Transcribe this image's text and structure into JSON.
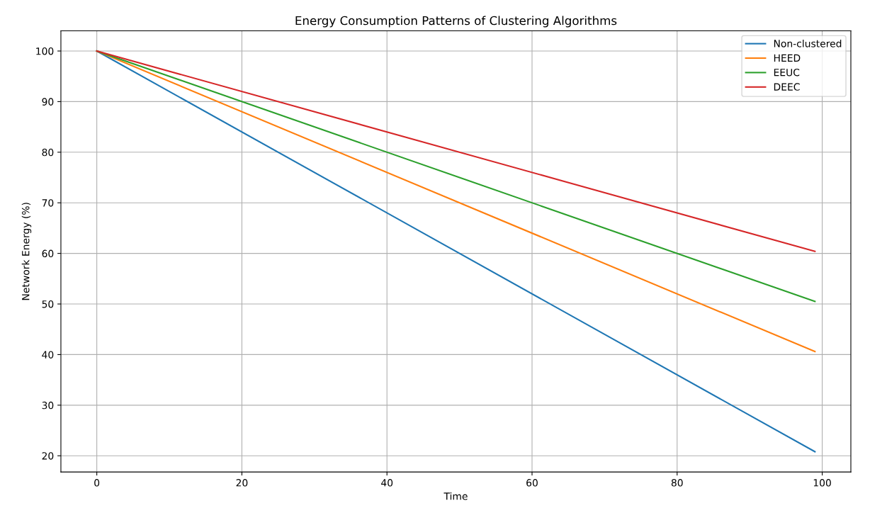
{
  "chart_data": {
    "type": "line",
    "title": "Energy Consumption Patterns of Clustering Algorithms",
    "xlabel": "Time",
    "ylabel": "Network Energy (%)",
    "x": [
      0,
      99
    ],
    "series": [
      {
        "name": "Non-clustered",
        "color": "#1f77b4",
        "values": [
          100,
          20.8
        ]
      },
      {
        "name": "HEED",
        "color": "#ff7f0e",
        "values": [
          100,
          40.6
        ]
      },
      {
        "name": "EEUC",
        "color": "#2ca02c",
        "values": [
          100,
          50.5
        ]
      },
      {
        "name": "DEEC",
        "color": "#d62728",
        "values": [
          100,
          60.4
        ]
      }
    ],
    "xlim": [
      -4.95,
      103.95
    ],
    "ylim": [
      16.8,
      104
    ],
    "xticks": [
      0,
      20,
      40,
      60,
      80,
      100
    ],
    "yticks": [
      20,
      30,
      40,
      50,
      60,
      70,
      80,
      90,
      100
    ],
    "grid": true,
    "legend": "top right",
    "marker": "none",
    "line_style": "solid"
  }
}
